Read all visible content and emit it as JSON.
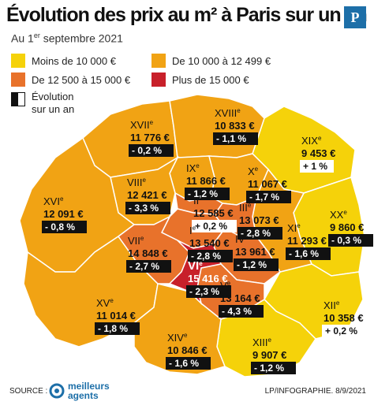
{
  "header": {
    "title": "Évolution des prix au m² à Paris sur un an",
    "subtitle_prefix": "Au 1",
    "subtitle_sup": "er",
    "subtitle_suffix": " septembre 2021",
    "logo_letter": "P"
  },
  "legend": {
    "items": [
      {
        "label": "Moins de 10 000 €",
        "color": "#f5d20a"
      },
      {
        "label": "De 10 000 à 12 499 €",
        "color": "#f1a314"
      },
      {
        "label": "De 12 500 à 15 000 €",
        "color": "#e8722b"
      },
      {
        "label": "Plus de 15 000 €",
        "color": "#c8202a"
      }
    ],
    "evolution_line1": "Évolution",
    "evolution_line2": "sur un an"
  },
  "arrondissements": [
    {
      "num": "XVII",
      "price": "11 776 €",
      "change": "- 0,2 %",
      "direction": "down"
    },
    {
      "num": "XVIII",
      "price": "10 833 €",
      "change": "- 1,1 %",
      "direction": "down"
    },
    {
      "num": "XIX",
      "price": "9 453 €",
      "change": "+ 1 %",
      "direction": "up"
    },
    {
      "num": "IX",
      "price": "11 866 €",
      "change": "- 1,2 %",
      "direction": "down"
    },
    {
      "num": "X",
      "price": "11 067 €",
      "change": "- 1,7 %",
      "direction": "down"
    },
    {
      "num": "VIII",
      "price": "12 421 €",
      "change": "- 3,3 %",
      "direction": "down"
    },
    {
      "num": "II",
      "price": "12 585 €",
      "change": "+ 0,2 %",
      "direction": "up"
    },
    {
      "num": "XX",
      "price": "9 860 €",
      "change": "- 0,3 %",
      "direction": "down"
    },
    {
      "num": "XVI",
      "price": "12 091 €",
      "change": "- 0,8 %",
      "direction": "down"
    },
    {
      "num": "I",
      "price": "13 540 €",
      "change": "- 2,8 %",
      "direction": "down"
    },
    {
      "num": "III",
      "price": "13 073 €",
      "change": "- 2,8 %",
      "direction": "down"
    },
    {
      "num": "XI",
      "price": "11 293 €",
      "change": "- 1,6 %",
      "direction": "down"
    },
    {
      "num": "VII",
      "price": "14 848 €",
      "change": "- 2,7 %",
      "direction": "down"
    },
    {
      "num": "IV",
      "price": "13 961 €",
      "change": "- 1,2 %",
      "direction": "down"
    },
    {
      "num": "VI",
      "price": "15 416 €",
      "change": "- 2,3 %",
      "direction": "down"
    },
    {
      "num": "V",
      "price": "13 164 €",
      "change": "- 4,3 %",
      "direction": "down"
    },
    {
      "num": "XV",
      "price": "11 014 €",
      "change": "- 1,8 %",
      "direction": "down"
    },
    {
      "num": "XII",
      "price": "10 358 €",
      "change": "+ 0,2 %",
      "direction": "up"
    },
    {
      "num": "XIV",
      "price": "10 846 €",
      "change": "- 1,6 %",
      "direction": "down"
    },
    {
      "num": "XIII",
      "price": "9 907 €",
      "change": "- 1,2 %",
      "direction": "down"
    }
  ],
  "footer": {
    "source_label": "SOURCE :",
    "agents_line1": "meilleurs",
    "agents_line2": "agents",
    "credit": "LP/INFOGRAPHIE.  8/9/2021"
  }
}
